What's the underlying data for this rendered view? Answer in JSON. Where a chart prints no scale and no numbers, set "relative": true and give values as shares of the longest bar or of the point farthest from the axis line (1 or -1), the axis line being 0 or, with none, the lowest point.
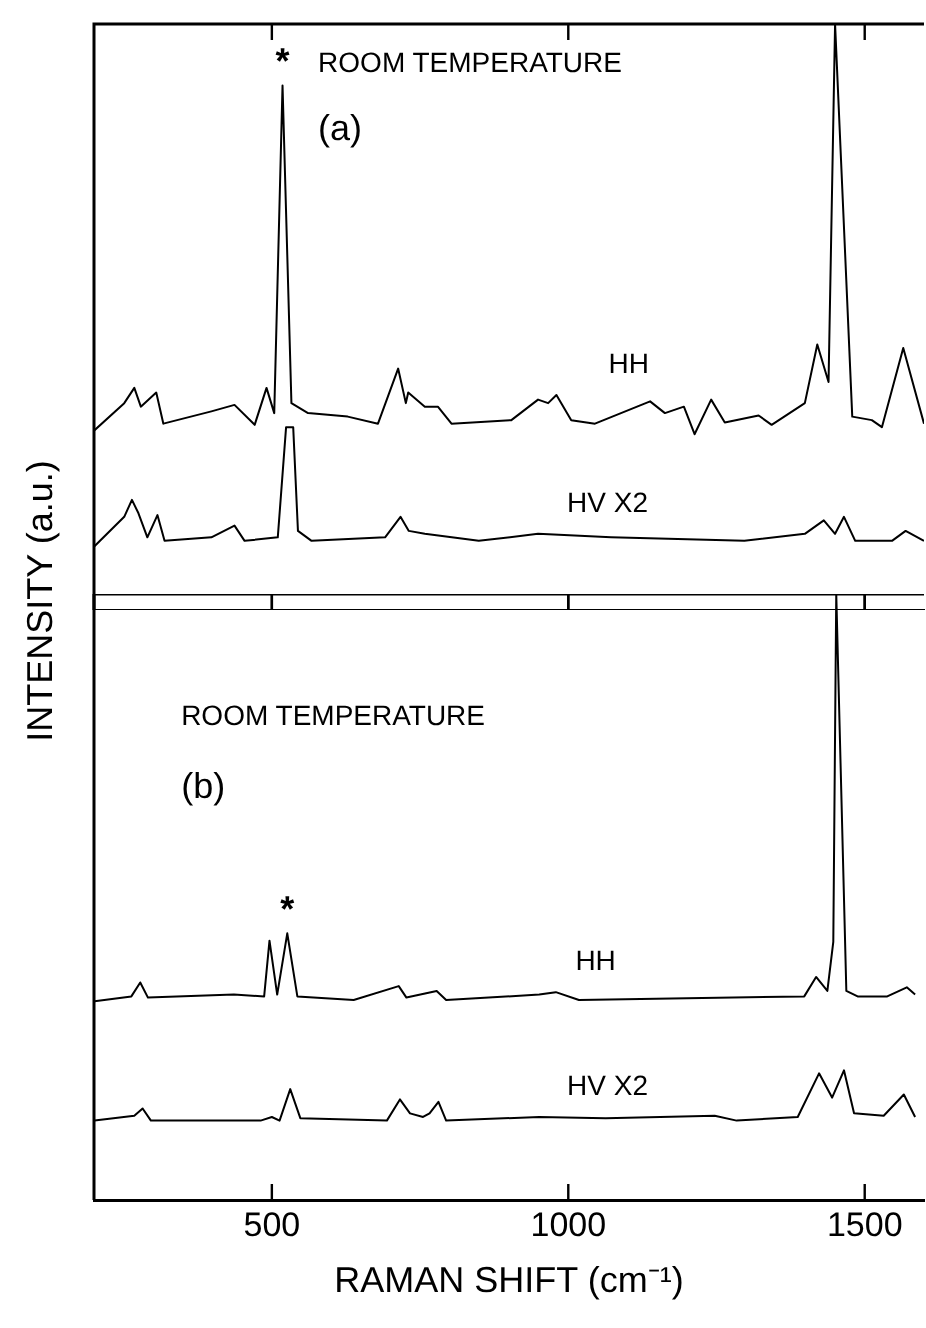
{
  "chart_data": [
    {
      "type": "line",
      "relative": true,
      "ylabel": "INTENSITY (a.u.)",
      "xlim": [
        200,
        1600
      ],
      "xticks": [
        {
          "value": 500,
          "label": null
        },
        {
          "value": 1000,
          "label": null
        },
        {
          "value": 1500,
          "label": null
        }
      ],
      "tick_labels": false,
      "annotations": [
        "ROOM TEMPERATURE",
        "(a)",
        {
          "text": "*",
          "x": 518,
          "y": 0.895
        }
      ],
      "series": [
        {
          "name": "HH",
          "color": "#000000",
          "x": [
            200,
            251,
            268,
            279,
            305,
            317,
            398,
            437,
            471,
            491,
            504,
            518,
            533,
            561,
            628,
            679,
            713,
            726,
            730,
            758,
            780,
            803,
            904,
            949,
            966,
            980,
            1005,
            1045,
            1138,
            1163,
            1195,
            1213,
            1241,
            1264,
            1321,
            1343,
            1399,
            1420,
            1439,
            1450,
            1479,
            1512,
            1529,
            1565,
            1600
          ],
          "values": [
            0.306,
            0.353,
            0.379,
            0.347,
            0.371,
            0.318,
            0.339,
            0.35,
            0.316,
            0.379,
            0.336,
            0.895,
            0.353,
            0.336,
            0.33,
            0.318,
            0.412,
            0.353,
            0.371,
            0.347,
            0.347,
            0.318,
            0.324,
            0.359,
            0.353,
            0.367,
            0.324,
            0.318,
            0.356,
            0.336,
            0.347,
            0.3,
            0.359,
            0.32,
            0.332,
            0.316,
            0.353,
            0.453,
            0.389,
            1.0,
            0.33,
            0.324,
            0.312,
            0.447,
            0.318
          ]
        },
        {
          "name": "HV X2",
          "color": "#000000",
          "x": [
            200,
            251,
            264,
            275,
            290,
            307,
            319,
            398,
            437,
            454,
            510,
            524,
            536,
            544,
            567,
            691,
            717,
            731,
            758,
            849,
            949,
            1072,
            1297,
            1399,
            1431,
            1450,
            1465,
            1484,
            1546,
            1569,
            1600
          ],
          "values": [
            0.108,
            0.159,
            0.188,
            0.165,
            0.124,
            0.162,
            0.118,
            0.124,
            0.144,
            0.118,
            0.124,
            0.312,
            0.312,
            0.135,
            0.118,
            0.124,
            0.159,
            0.135,
            0.13,
            0.118,
            0.13,
            0.124,
            0.118,
            0.13,
            0.153,
            0.13,
            0.159,
            0.118,
            0.118,
            0.135,
            0.118
          ]
        }
      ]
    },
    {
      "type": "line",
      "relative": true,
      "xlabel": "RAMAN SHIFT (cm⁻¹)",
      "xlim": [
        200,
        1600
      ],
      "xticks": [
        500,
        1000,
        1500
      ],
      "tick_labels": "x",
      "annotations": [
        "ROOM TEMPERATURE",
        "(b)",
        {
          "text": "*",
          "x": 526,
          "y": 0.44
        }
      ],
      "series": [
        {
          "name": "HH",
          "color": "#000000",
          "x": [
            201,
            263,
            278,
            291,
            436,
            487,
            496,
            509,
            526,
            543,
            638,
            714,
            727,
            778,
            794,
            951,
            979,
            1018,
            1398,
            1418,
            1437,
            1447,
            1452,
            1469,
            1488,
            1538,
            1571,
            1585
          ],
          "values": [
            0.328,
            0.336,
            0.359,
            0.334,
            0.339,
            0.336,
            0.428,
            0.339,
            0.44,
            0.336,
            0.33,
            0.353,
            0.334,
            0.345,
            0.33,
            0.339,
            0.343,
            0.33,
            0.336,
            0.368,
            0.345,
            0.426,
            1.0,
            0.345,
            0.336,
            0.336,
            0.351,
            0.339
          ]
        },
        {
          "name": "HV X2",
          "color": "#000000",
          "x": [
            201,
            268,
            282,
            296,
            481,
            500,
            513,
            531,
            548,
            694,
            716,
            733,
            755,
            766,
            781,
            794,
            951,
            1063,
            1247,
            1284,
            1387,
            1423,
            1445,
            1465,
            1482,
            1532,
            1566,
            1585
          ],
          "values": [
            0.131,
            0.139,
            0.151,
            0.131,
            0.131,
            0.137,
            0.131,
            0.183,
            0.135,
            0.131,
            0.166,
            0.143,
            0.137,
            0.143,
            0.162,
            0.131,
            0.137,
            0.135,
            0.139,
            0.131,
            0.137,
            0.209,
            0.169,
            0.214,
            0.143,
            0.139,
            0.174,
            0.137
          ]
        }
      ]
    }
  ]
}
